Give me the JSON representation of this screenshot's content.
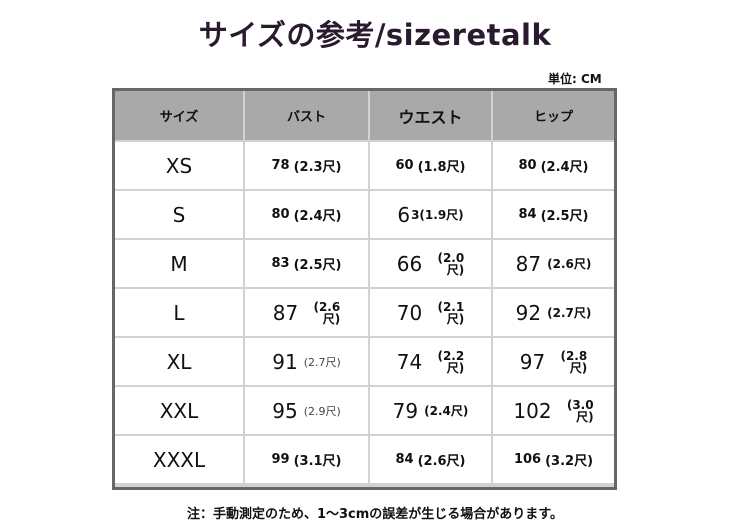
{
  "title": "サイズの参考/sizeretalk",
  "unit_label": "単位: CM",
  "headers": [
    "サイズ",
    "バスト",
    "ウエスト",
    "ヒップ"
  ],
  "rows": [
    {
      "size": "XS",
      "cells": [
        {
          "v": "small",
          "n": "78",
          "p": "(2.3尺)"
        },
        {
          "v": "small",
          "n": "60",
          "p": "(1.8尺)"
        },
        {
          "v": "small",
          "n": "80",
          "p": "(2.4尺)"
        }
      ]
    },
    {
      "size": "S",
      "cells": [
        {
          "v": "small",
          "n": "80",
          "p": "(2.4尺)"
        },
        {
          "v": "big",
          "n": "6",
          "p": "3(1.9尺)"
        },
        {
          "v": "small",
          "n": "84",
          "p": "(2.5尺)"
        }
      ]
    },
    {
      "size": "M",
      "cells": [
        {
          "v": "small",
          "n": "83",
          "p": "(2.5尺)"
        },
        {
          "v": "stack",
          "n": "66",
          "p": "(2.0\n尺)"
        },
        {
          "v": "big",
          "n": "87",
          "p": "(2.6尺)"
        }
      ]
    },
    {
      "size": "L",
      "cells": [
        {
          "v": "stack",
          "n": "87",
          "p": "(2.6\n尺)"
        },
        {
          "v": "stack",
          "n": "70",
          "p": "(2.1\n尺)"
        },
        {
          "v": "big",
          "n": "92",
          "p": "(2.7尺)"
        }
      ]
    },
    {
      "size": "XL",
      "cells": [
        {
          "v": "light",
          "n": "91",
          "p": "(2.7尺)"
        },
        {
          "v": "stack",
          "n": "74",
          "p": "(2.2\n尺)"
        },
        {
          "v": "stack",
          "n": "97",
          "p": "(2.8\n尺)"
        }
      ]
    },
    {
      "size": "XXL",
      "cells": [
        {
          "v": "light",
          "n": "95",
          "p": "(2.9尺)"
        },
        {
          "v": "big",
          "n": "79",
          "p": "(2.4尺)"
        },
        {
          "v": "stack",
          "n": "102",
          "p": "(3.0\n尺)"
        }
      ]
    },
    {
      "size": "XXXL",
      "cells": [
        {
          "v": "small",
          "n": "99",
          "p": "(3.1尺)"
        },
        {
          "v": "small",
          "n": "84",
          "p": "(2.6尺)"
        },
        {
          "v": "small",
          "n": "106",
          "p": "(3.2尺)"
        }
      ]
    }
  ],
  "note": "注：手動測定のため、1～3cmの誤差が生じる場合があります。"
}
